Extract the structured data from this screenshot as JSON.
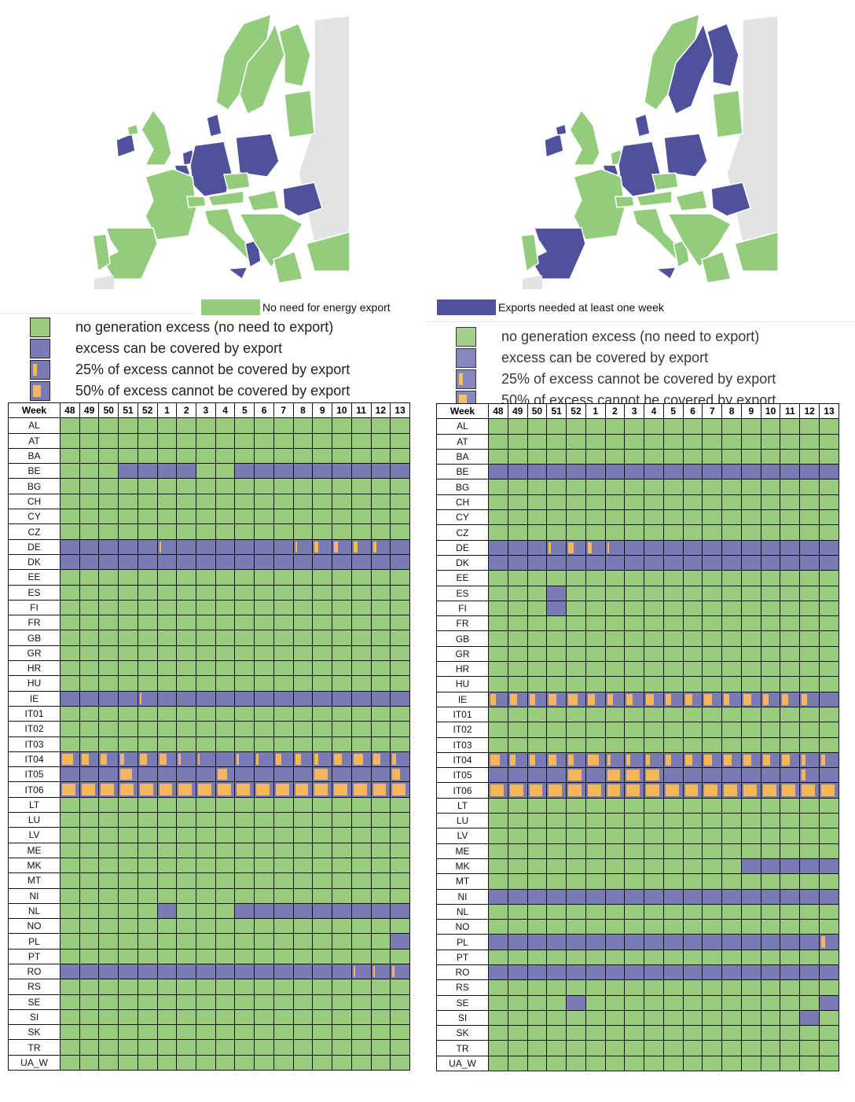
{
  "colors": {
    "green": "#9aca7e",
    "blue": "#7a7bb5",
    "orange": "#f5b75a",
    "map_green": "#93cc7c",
    "map_blue": "#4f519c",
    "map_gray": "#e3e3e5"
  },
  "top_legend": {
    "green_label": "No need for energy export",
    "blue_label": "Exports needed at least one week"
  },
  "legend": [
    "no generation excess (no need to export)",
    "excess can be covered by export",
    "25% of excess cannot be covered by export",
    "50% of excess cannot be covered by export"
  ],
  "maps": [
    {
      "blue_regions": [
        "DE",
        "PL",
        "RO",
        "DK",
        "IE",
        "BE",
        "NL",
        "south-italy",
        "sicily"
      ]
    },
    {
      "blue_regions": [
        "DE",
        "PL",
        "RO",
        "DK",
        "IE",
        "BE",
        "ES",
        "SE",
        "FI",
        "sicily",
        "NI"
      ]
    }
  ],
  "chart_data": {
    "type": "heatmap",
    "legend_codes": {
      "g": "no generation excess",
      "b": "excess covered by export",
      "1-9": "blue with orange fraction (tenths) of excess not covered"
    },
    "week_header": "Week",
    "weeks": [
      "48",
      "49",
      "50",
      "51",
      "52",
      "1",
      "2",
      "3",
      "4",
      "5",
      "6",
      "7",
      "8",
      "9",
      "10",
      "11",
      "12",
      "13"
    ],
    "countries": [
      "AL",
      "AT",
      "BA",
      "BE",
      "BG",
      "CH",
      "CY",
      "CZ",
      "DE",
      "DK",
      "EE",
      "ES",
      "FI",
      "FR",
      "GB",
      "GR",
      "HR",
      "HU",
      "IE",
      "IT01",
      "IT02",
      "IT03",
      "IT04",
      "IT05",
      "IT06",
      "LT",
      "LU",
      "LV",
      "ME",
      "MK",
      "MT",
      "NI",
      "NL",
      "NO",
      "PL",
      "PT",
      "RO",
      "RS",
      "SE",
      "SI",
      "SK",
      "TR",
      "UA_W"
    ],
    "panels": [
      {
        "rows": {
          "BE": "gggbbbbggbbbbbbbbb",
          "DE": "bbbbb1bbbbbb12222b",
          "DK": "bbbbbbbbbbbbbbbbbb",
          "IE": "bbbb1bbbbbbbbbbbbb",
          "IT04": "64324411b113324542",
          "IT05": "bbb6bbbb5bbbb7bbb4",
          "IT06": "777777777777777777",
          "NL": "gggggbgggbbbbbbbbb",
          "PL": "gggggggggggggggggb",
          "RO": "bbbbbbbbbbbbbbb111"
        }
      },
      {
        "rows": {
          "BE": "bbbbbbbbbbbbbbbbbb",
          "DE": "bbb1321bbbbbbbbbbb",
          "DK": "bbbbbbbbbbbbbbbbbb",
          "ES": "gggbgggggggggggggg",
          "FI": "gggbgggggggggggggg",
          "IE": "34345433434434333b",
          "IT04": "533436222344444422",
          "IT05": "bbbb7b777bbbbbbb2b",
          "IT06": "777777777777777777",
          "MK": "gggggggggggggbbbbb",
          "NI": "bbbbbbbbbbbbbbbbbb",
          "PL": "bbbbbbbbbbbbbbbbb2",
          "RO": "bbbbbbbbbbbbbbbbbb",
          "SE": "ggggbggggggggggggb",
          "SI": "ggggggggggggggggbg"
        }
      }
    ]
  }
}
